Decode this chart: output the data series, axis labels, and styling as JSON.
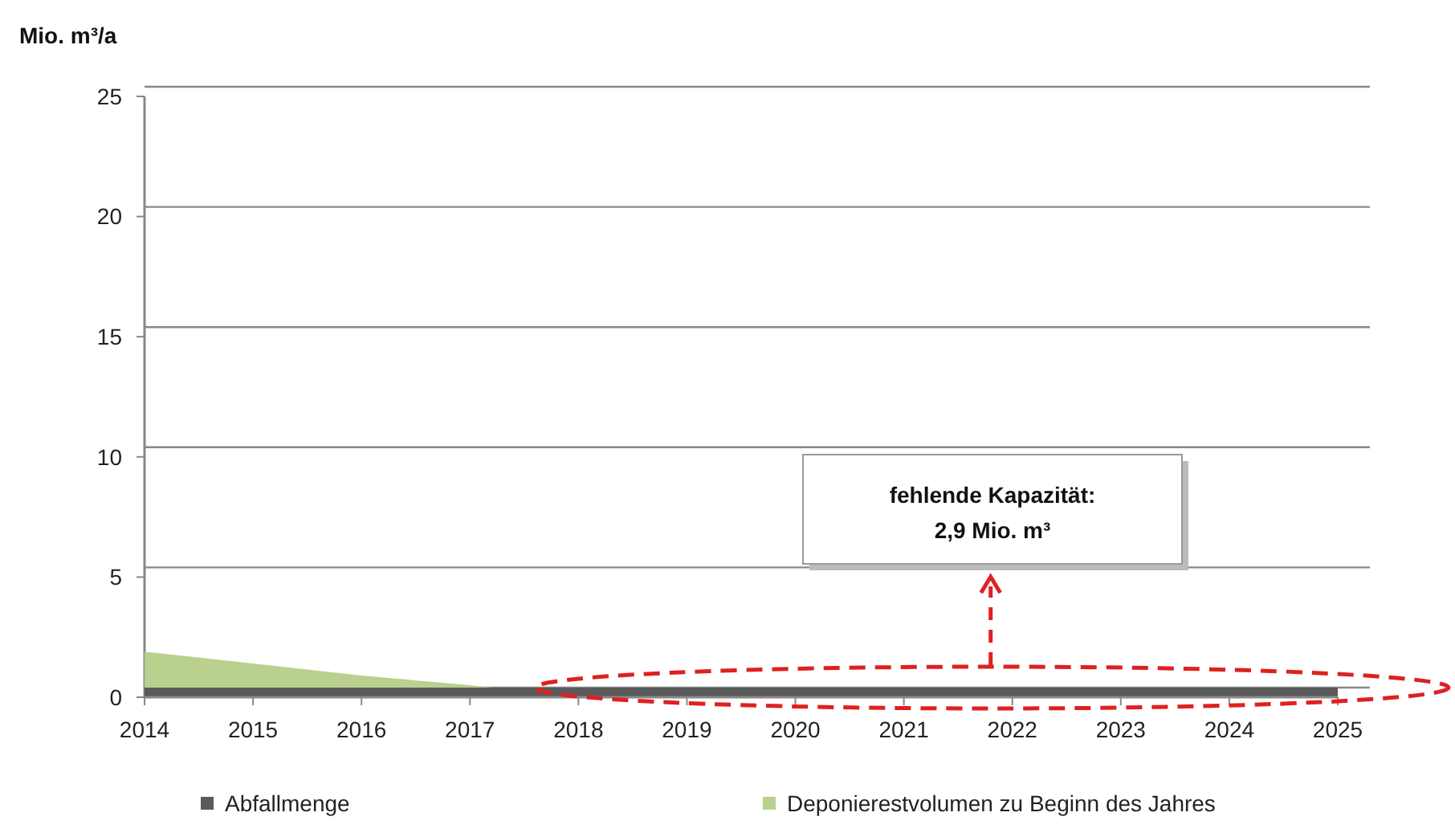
{
  "chart_data": {
    "type": "area",
    "ylabel": "Mio. m³/a",
    "x": [
      2014,
      2015,
      2016,
      2017,
      2018,
      2019,
      2020,
      2021,
      2022,
      2023,
      2024,
      2025
    ],
    "series": [
      {
        "name": "Abfallmenge",
        "color": "#5a5a5a",
        "values": [
          0.4,
          0.4,
          0.4,
          0.4,
          0.4,
          0.4,
          0.4,
          0.4,
          0.4,
          0.4,
          0.4,
          0.4
        ]
      },
      {
        "name": "Deponierestvolumen zu Beginn des Jahres",
        "color": "#b9d08e",
        "values": [
          1.9,
          1.4,
          0.9,
          0.5,
          0,
          0,
          0,
          0,
          0,
          0,
          0,
          0
        ]
      }
    ],
    "xlim": [
      2014,
      2025
    ],
    "xticks": [
      2014,
      2015,
      2016,
      2017,
      2018,
      2019,
      2020,
      2021,
      2022,
      2023,
      2024,
      2025
    ],
    "ylim": [
      0,
      25
    ],
    "yticks": [
      0,
      5,
      10,
      15,
      20,
      25
    ],
    "grid": "y",
    "legend": "bottom",
    "annotations": [
      "fehlende Kapazität:\n2,9 Mio. m³"
    ]
  }
}
